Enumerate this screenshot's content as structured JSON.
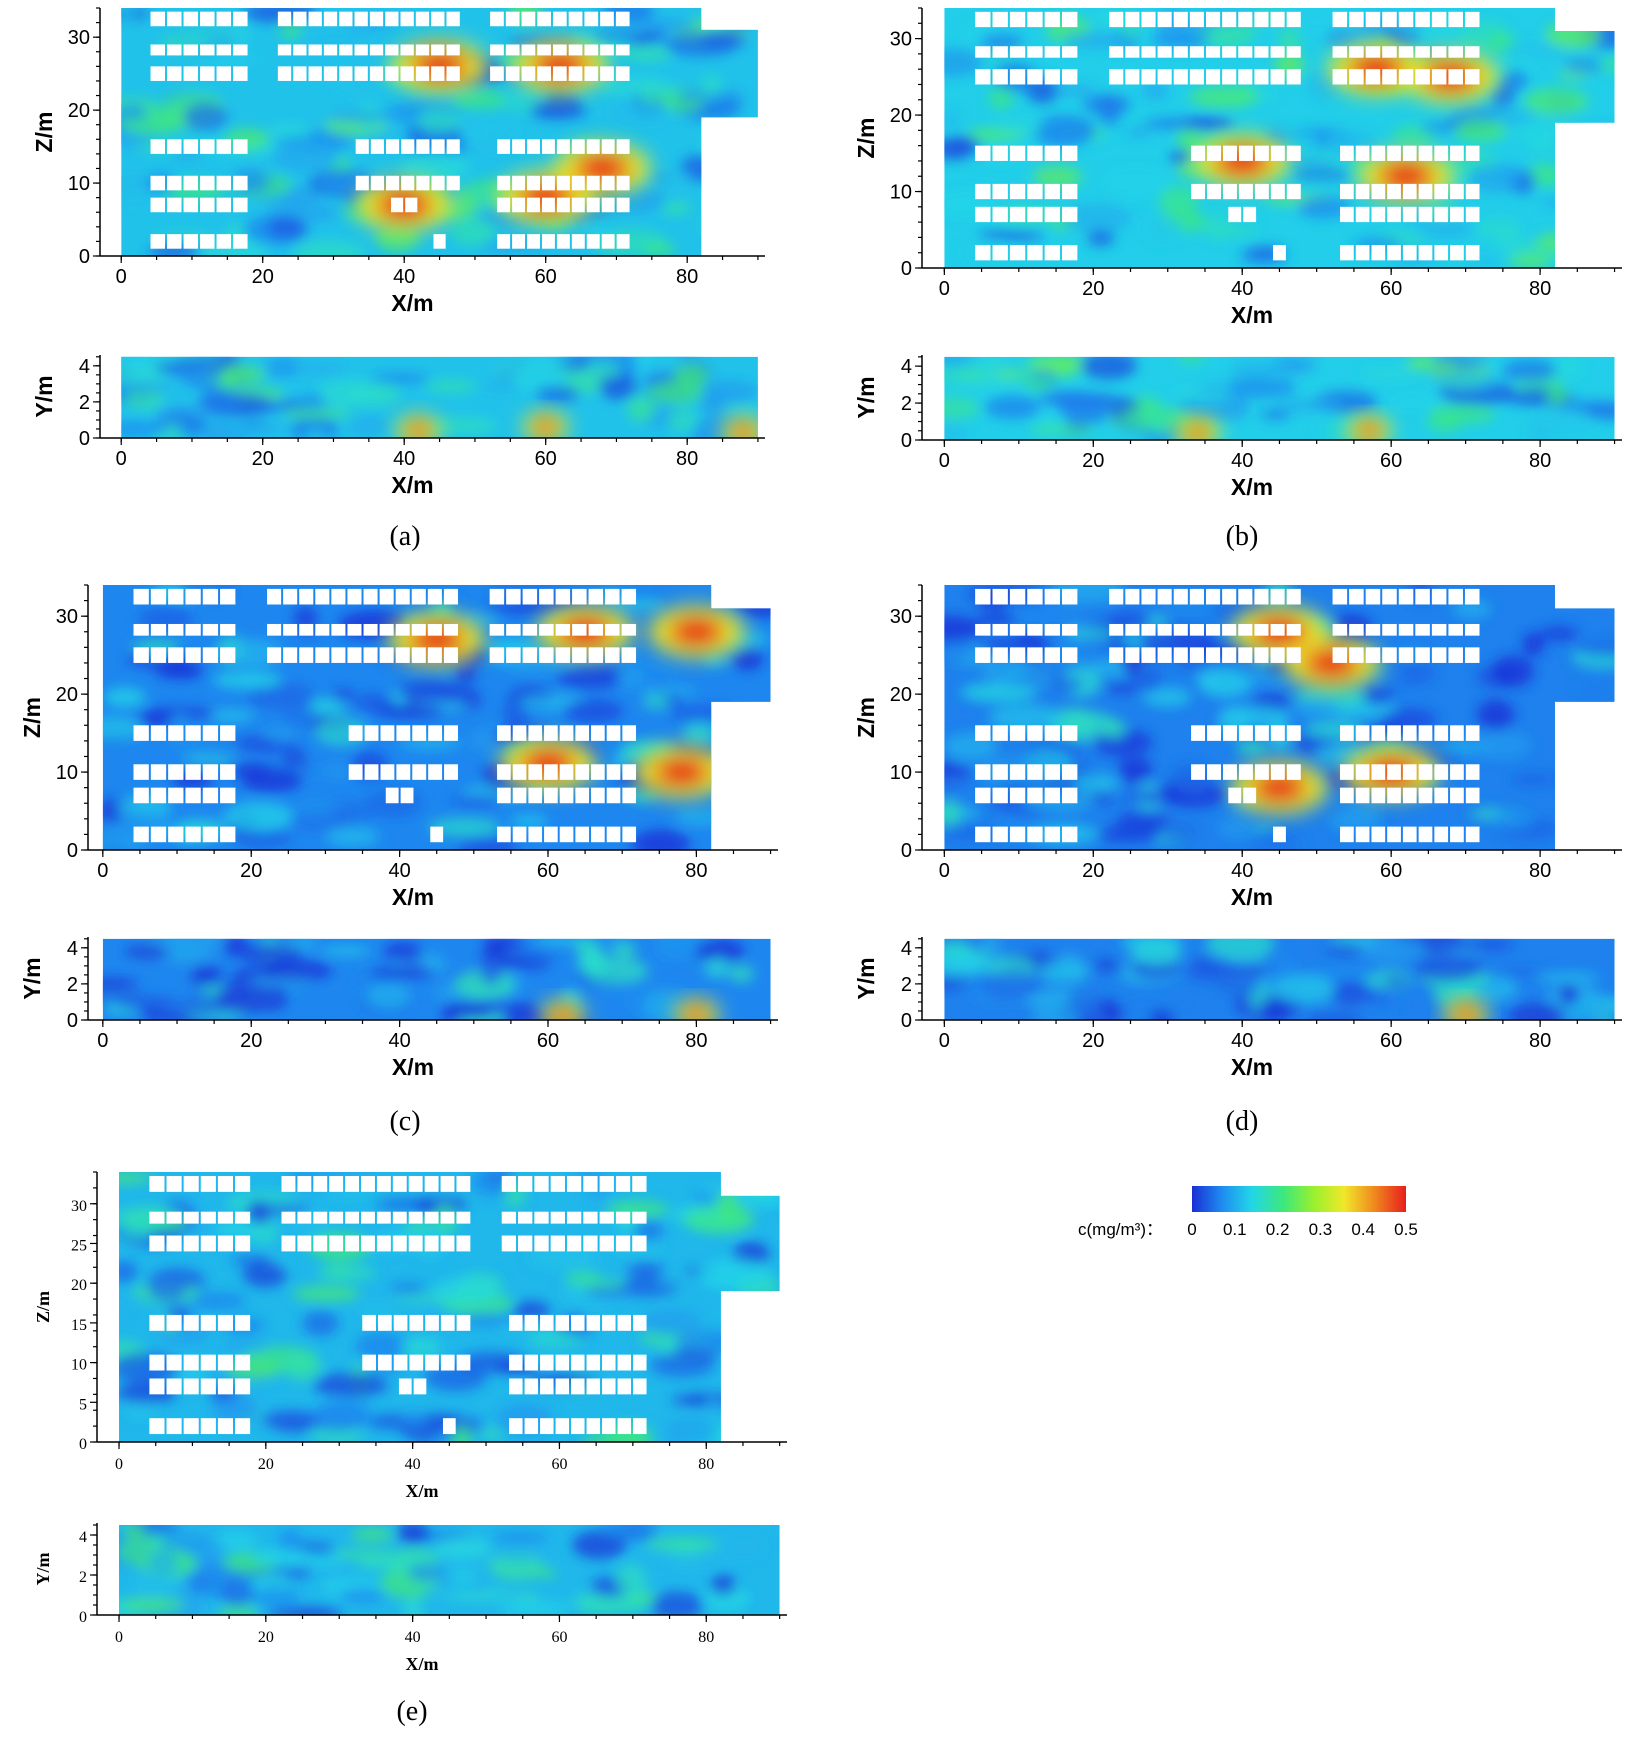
{
  "colorbar": {
    "label": "c(mg/m³)：",
    "ticks": [
      "0",
      "0.1",
      "0.2",
      "0.3",
      "0.4",
      "0.5"
    ],
    "stops": [
      "#1a2fd6",
      "#1e8cf0",
      "#22d6e8",
      "#3ee87a",
      "#9af02e",
      "#f0e82a",
      "#f08a1e",
      "#e81e1e"
    ]
  },
  "panels": [
    {
      "label": "(a)",
      "level": 0.55,
      "main": {
        "x_ticks": [
          "0",
          "20",
          "40",
          "60",
          "80"
        ],
        "y_ticks": [
          "0",
          "10",
          "20",
          "30"
        ],
        "xlabel": "X/m",
        "ylabel": "Z/m",
        "hotspots": [
          [
            40,
            7
          ],
          [
            60,
            8
          ],
          [
            68,
            12
          ],
          [
            45,
            26
          ],
          [
            62,
            26
          ]
        ]
      },
      "side": {
        "x_ticks": [
          "0",
          "20",
          "40",
          "60",
          "80"
        ],
        "y_ticks": [
          "0",
          "2",
          "4"
        ],
        "xlabel": "X/m",
        "ylabel": "Y/m",
        "hotspots": [
          [
            42,
            0.4
          ],
          [
            60,
            0.6
          ],
          [
            88,
            0.3
          ]
        ]
      }
    },
    {
      "label": "(b)",
      "level": 0.6,
      "main": {
        "x_ticks": [
          "0",
          "20",
          "40",
          "60",
          "80"
        ],
        "y_ticks": [
          "0",
          "10",
          "20",
          "30"
        ],
        "xlabel": "X/m",
        "ylabel": "Z/m",
        "hotspots": [
          [
            40,
            14
          ],
          [
            62,
            12
          ],
          [
            58,
            26
          ],
          [
            68,
            25
          ]
        ]
      },
      "side": {
        "x_ticks": [
          "0",
          "20",
          "40",
          "60",
          "80"
        ],
        "y_ticks": [
          "0",
          "2",
          "4"
        ],
        "xlabel": "X/m",
        "ylabel": "Y/m",
        "hotspots": [
          [
            34,
            0.4
          ],
          [
            57,
            0.5
          ]
        ]
      }
    },
    {
      "label": "(c)",
      "level": 0.3,
      "main": {
        "x_ticks": [
          "0",
          "20",
          "40",
          "60",
          "80"
        ],
        "y_ticks": [
          "0",
          "10",
          "20",
          "30"
        ],
        "xlabel": "X/m",
        "ylabel": "Z/m",
        "hotspots": [
          [
            45,
            27
          ],
          [
            65,
            28
          ],
          [
            78,
            10
          ],
          [
            80,
            28
          ],
          [
            60,
            11
          ]
        ]
      },
      "side": {
        "x_ticks": [
          "0",
          "20",
          "40",
          "60",
          "80"
        ],
        "y_ticks": [
          "0",
          "2",
          "4"
        ],
        "xlabel": "X/m",
        "ylabel": "Y/m",
        "hotspots": [
          [
            80,
            0.3
          ],
          [
            62,
            0.2
          ]
        ]
      }
    },
    {
      "label": "(d)",
      "level": 0.28,
      "main": {
        "x_ticks": [
          "0",
          "20",
          "40",
          "60",
          "80"
        ],
        "y_ticks": [
          "0",
          "10",
          "20",
          "30"
        ],
        "xlabel": "X/m",
        "ylabel": "Z/m",
        "hotspots": [
          [
            45,
            28
          ],
          [
            52,
            24
          ],
          [
            60,
            10
          ],
          [
            45,
            8
          ]
        ]
      },
      "side": {
        "x_ticks": [
          "0",
          "20",
          "40",
          "60",
          "80"
        ],
        "y_ticks": [
          "0",
          "2",
          "4"
        ],
        "xlabel": "X/m",
        "ylabel": "Y/m",
        "hotspots": [
          [
            70,
            0.3
          ]
        ]
      }
    },
    {
      "label": "(e)",
      "level": 0.5,
      "main": {
        "x_ticks": [
          "0",
          "20",
          "40",
          "60",
          "80"
        ],
        "y_ticks": [
          "0",
          "5",
          "10",
          "15",
          "20",
          "25",
          "30"
        ],
        "xlabel": "X/m",
        "ylabel": "Z/m",
        "hotspots": []
      },
      "side": {
        "x_ticks": [
          "0",
          "20",
          "40",
          "60",
          "80"
        ],
        "y_ticks": [
          "0",
          "2",
          "4"
        ],
        "xlabel": "X/m",
        "ylabel": "Y/m",
        "hotspots": []
      }
    }
  ],
  "chart_data": [
    {
      "panel": "(a)",
      "type": "heatmap",
      "xlabel": "X/m",
      "ylabel": "Z/m",
      "xlim": [
        0,
        90
      ],
      "ylim": [
        0,
        34
      ],
      "value_range": [
        0,
        0.5
      ],
      "unit": "mg/m³"
    },
    {
      "panel": "(a)",
      "type": "heatmap",
      "xlabel": "X/m",
      "ylabel": "Y/m",
      "xlim": [
        0,
        90
      ],
      "ylim": [
        0,
        4.5
      ],
      "value_range": [
        0,
        0.5
      ],
      "unit": "mg/m³"
    },
    {
      "panel": "(b)",
      "type": "heatmap",
      "xlabel": "X/m",
      "ylabel": "Z/m",
      "xlim": [
        0,
        90
      ],
      "ylim": [
        0,
        34
      ],
      "value_range": [
        0,
        0.5
      ],
      "unit": "mg/m³"
    },
    {
      "panel": "(b)",
      "type": "heatmap",
      "xlabel": "X/m",
      "ylabel": "Y/m",
      "xlim": [
        0,
        90
      ],
      "ylim": [
        0,
        4.5
      ],
      "value_range": [
        0,
        0.5
      ],
      "unit": "mg/m³"
    },
    {
      "panel": "(c)",
      "type": "heatmap",
      "xlabel": "X/m",
      "ylabel": "Z/m",
      "xlim": [
        0,
        90
      ],
      "ylim": [
        0,
        34
      ],
      "value_range": [
        0,
        0.5
      ],
      "unit": "mg/m³"
    },
    {
      "panel": "(c)",
      "type": "heatmap",
      "xlabel": "X/m",
      "ylabel": "Y/m",
      "xlim": [
        0,
        90
      ],
      "ylim": [
        0,
        4.5
      ],
      "value_range": [
        0,
        0.5
      ],
      "unit": "mg/m³"
    },
    {
      "panel": "(d)",
      "type": "heatmap",
      "xlabel": "X/m",
      "ylabel": "Z/m",
      "xlim": [
        0,
        90
      ],
      "ylim": [
        0,
        34
      ],
      "value_range": [
        0,
        0.5
      ],
      "unit": "mg/m³"
    },
    {
      "panel": "(d)",
      "type": "heatmap",
      "xlabel": "X/m",
      "ylabel": "Y/m",
      "xlim": [
        0,
        90
      ],
      "ylim": [
        0,
        4.5
      ],
      "value_range": [
        0,
        0.5
      ],
      "unit": "mg/m³"
    },
    {
      "panel": "(e)",
      "type": "heatmap",
      "xlabel": "X/m",
      "ylabel": "Z/m",
      "xlim": [
        0,
        90
      ],
      "ylim": [
        0,
        34
      ],
      "value_range": [
        0,
        0.5
      ],
      "unit": "mg/m³"
    },
    {
      "panel": "(e)",
      "type": "heatmap",
      "xlabel": "X/m",
      "ylabel": "Y/m",
      "xlim": [
        0,
        90
      ],
      "ylim": [
        0,
        4.5
      ],
      "value_range": [
        0,
        0.5
      ],
      "unit": "mg/m³"
    }
  ]
}
